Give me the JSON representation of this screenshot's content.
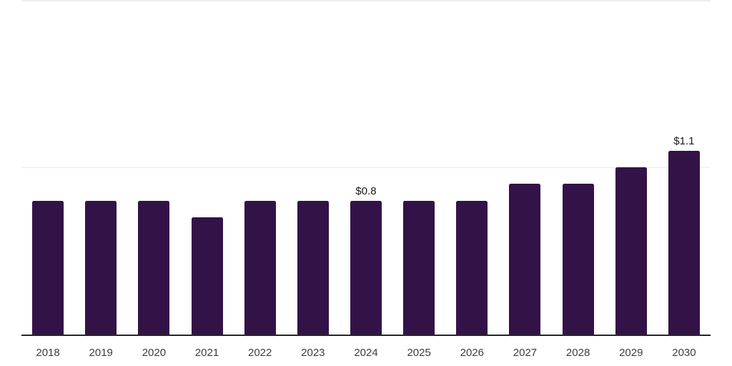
{
  "chart_data": {
    "type": "bar",
    "title": "",
    "xlabel": "",
    "ylabel": "",
    "categories": [
      "2018",
      "2019",
      "2020",
      "2021",
      "2022",
      "2023",
      "2024",
      "2025",
      "2026",
      "2027",
      "2028",
      "2029",
      "2030"
    ],
    "values": [
      0.8,
      0.8,
      0.8,
      0.7,
      0.8,
      0.8,
      0.8,
      0.8,
      0.8,
      0.9,
      0.9,
      1.0,
      1.1
    ],
    "bar_value_labels": [
      "",
      "",
      "",
      "",
      "",
      "",
      "$0.8",
      "",
      "",
      "",
      "",
      "",
      "$1.1"
    ],
    "ylim": [
      0,
      2.0
    ],
    "gridline_values": [
      1.0,
      2.0
    ],
    "grid_visible": true,
    "legend_position": "none",
    "colors": {
      "bar": "#331347",
      "value_label": "#1a1a1a",
      "tick_label": "#3d3d3d",
      "axis_line": "#262626",
      "gridline": "#ececec",
      "gridline_top": "#efefef",
      "background": "#ffffff"
    }
  }
}
